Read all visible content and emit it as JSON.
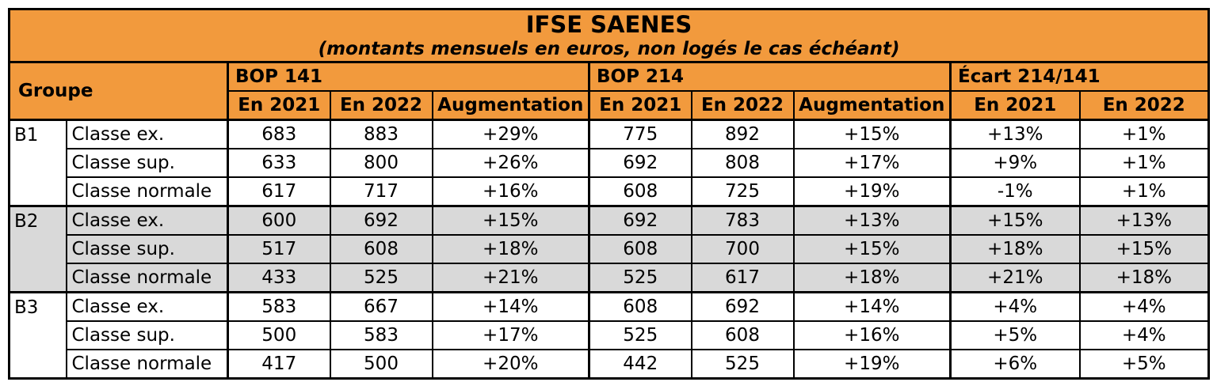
{
  "title": "IFSE SAENES",
  "subtitle": "(montants mensuels en euros, non logés le cas échéant)",
  "header": {
    "groupe": "Groupe",
    "bop141": "BOP 141",
    "bop214": "BOP 214",
    "ecart": "Écart 214/141",
    "en2021": "En 2021",
    "en2022": "En 2022",
    "augmentation": "Augmentation"
  },
  "groups": [
    {
      "name": "B1",
      "shaded": false,
      "rows": [
        {
          "classe": "Classe ex.",
          "b141_2021": "683",
          "b141_2022": "883",
          "b141_aug": "+29%",
          "b214_2021": "775",
          "b214_2022": "892",
          "b214_aug": "+15%",
          "ecart_2021": "+13%",
          "ecart_2022": "+1%"
        },
        {
          "classe": "Classe sup.",
          "b141_2021": "633",
          "b141_2022": "800",
          "b141_aug": "+26%",
          "b214_2021": "692",
          "b214_2022": "808",
          "b214_aug": "+17%",
          "ecart_2021": "+9%",
          "ecart_2022": "+1%"
        },
        {
          "classe": "Classe normale",
          "b141_2021": "617",
          "b141_2022": "717",
          "b141_aug": "+16%",
          "b214_2021": "608",
          "b214_2022": "725",
          "b214_aug": "+19%",
          "ecart_2021": "-1%",
          "ecart_2022": "+1%"
        }
      ]
    },
    {
      "name": "B2",
      "shaded": true,
      "rows": [
        {
          "classe": "Classe ex.",
          "b141_2021": "600",
          "b141_2022": "692",
          "b141_aug": "+15%",
          "b214_2021": "692",
          "b214_2022": "783",
          "b214_aug": "+13%",
          "ecart_2021": "+15%",
          "ecart_2022": "+13%"
        },
        {
          "classe": "Classe sup.",
          "b141_2021": "517",
          "b141_2022": "608",
          "b141_aug": "+18%",
          "b214_2021": "608",
          "b214_2022": "700",
          "b214_aug": "+15%",
          "ecart_2021": "+18%",
          "ecart_2022": "+15%"
        },
        {
          "classe": "Classe normale",
          "b141_2021": "433",
          "b141_2022": "525",
          "b141_aug": "+21%",
          "b214_2021": "525",
          "b214_2022": "617",
          "b214_aug": "+18%",
          "ecart_2021": "+21%",
          "ecart_2022": "+18%"
        }
      ]
    },
    {
      "name": "B3",
      "shaded": false,
      "rows": [
        {
          "classe": "Classe ex.",
          "b141_2021": "583",
          "b141_2022": "667",
          "b141_aug": "+14%",
          "b214_2021": "608",
          "b214_2022": "692",
          "b214_aug": "+14%",
          "ecart_2021": "+4%",
          "ecart_2022": "+4%"
        },
        {
          "classe": "Classe sup.",
          "b141_2021": "500",
          "b141_2022": "583",
          "b141_aug": "+17%",
          "b214_2021": "525",
          "b214_2022": "608",
          "b214_aug": "+16%",
          "ecart_2021": "+5%",
          "ecart_2022": "+4%"
        },
        {
          "classe": "Classe normale",
          "b141_2021": "417",
          "b141_2022": "500",
          "b141_aug": "+20%",
          "b214_2021": "442",
          "b214_2022": "525",
          "b214_aug": "+19%",
          "ecart_2021": "+6%",
          "ecart_2022": "+5%"
        }
      ]
    }
  ],
  "colors": {
    "header_bg": "#f29a3d",
    "shaded_row_bg": "#d9d9d9"
  }
}
